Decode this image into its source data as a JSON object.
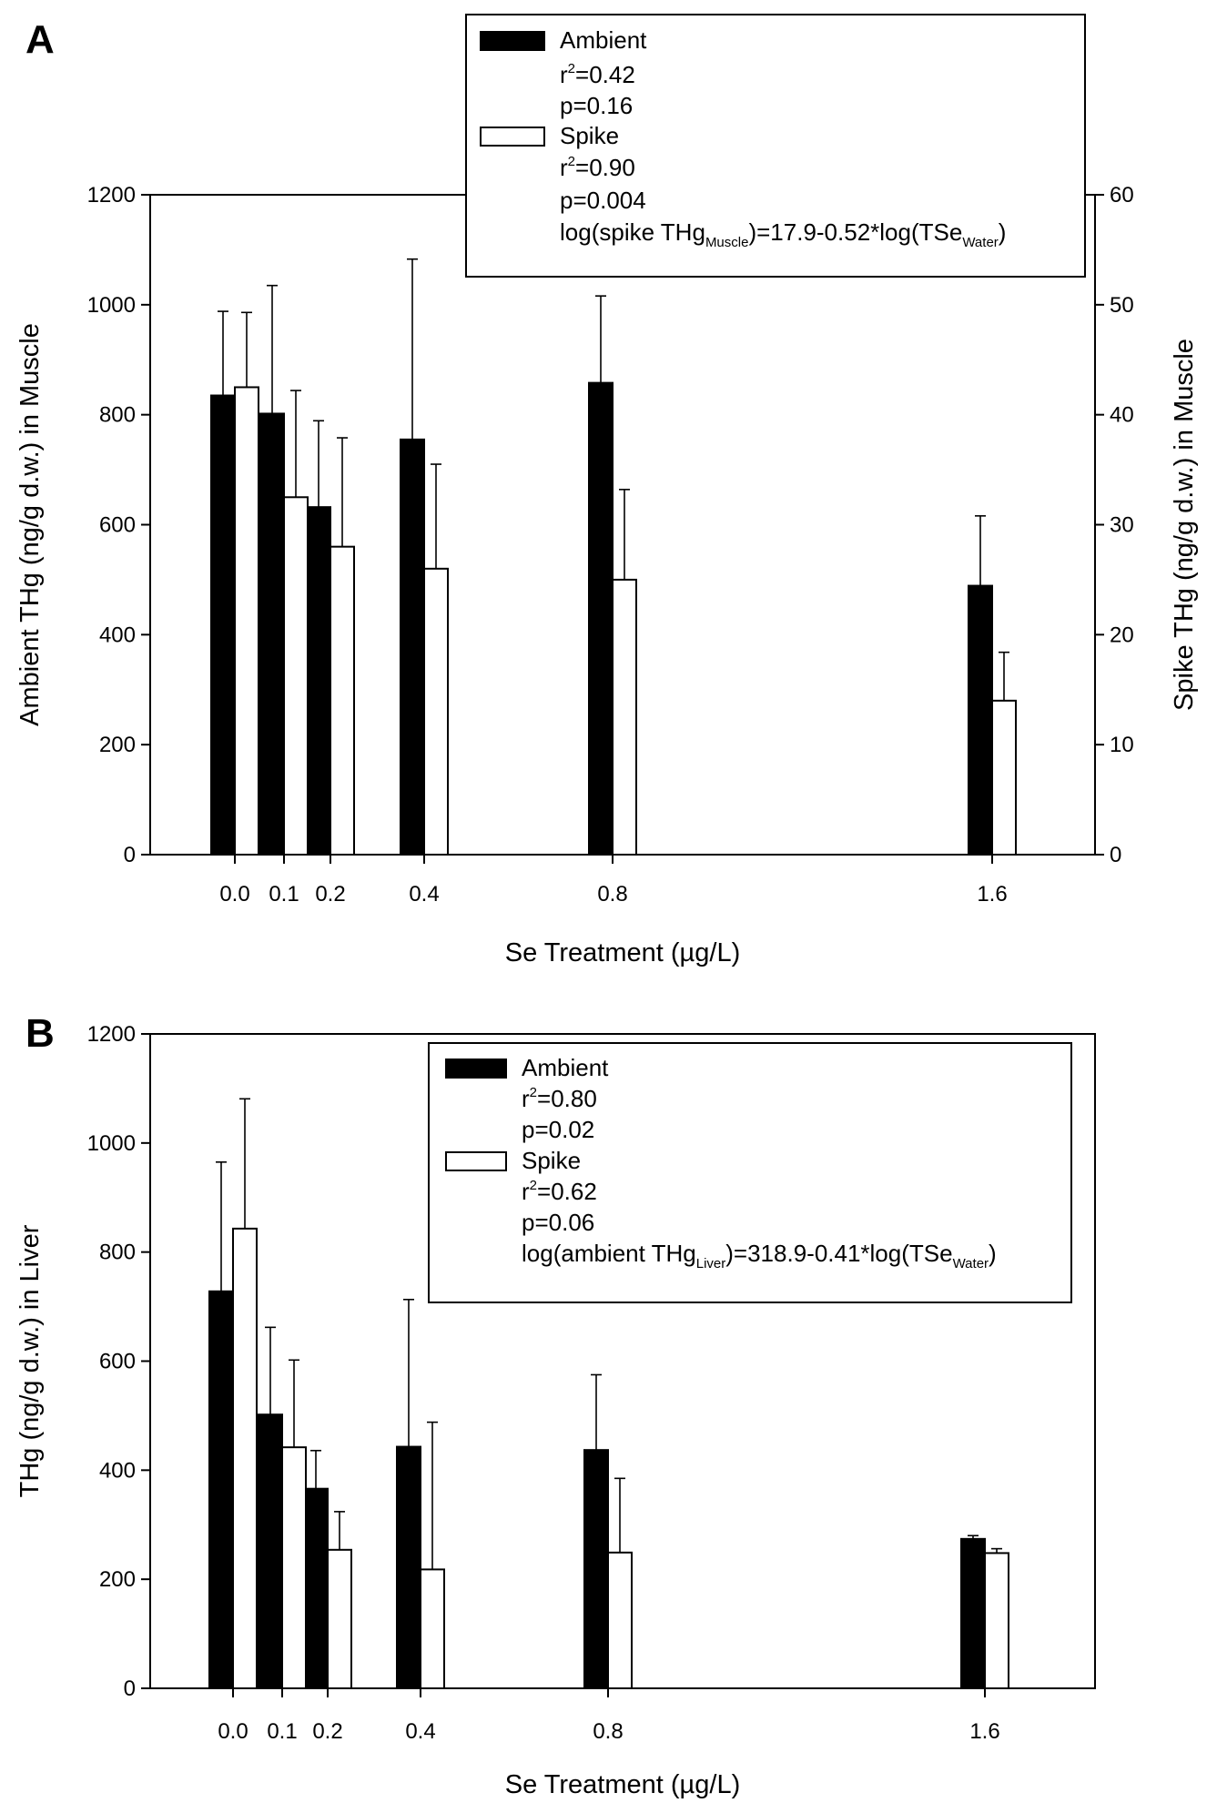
{
  "chart_data": [
    {
      "panel": "A",
      "type": "bar",
      "categories": [
        "0.0",
        "0.1",
        "0.2",
        "0.4",
        "0.8",
        "1.6"
      ],
      "x": [
        0.0,
        0.1,
        0.2,
        0.4,
        0.8,
        1.6
      ],
      "xlabel": "Se Treatment (µg/L)",
      "ylabel": "Ambient THg (ng/g d.w.) in Muscle",
      "y2label": "Spike THg (ng/g d.w.) in Muscle",
      "ylim": [
        0,
        1200
      ],
      "y2lim": [
        0,
        60
      ],
      "yticks": [
        0,
        200,
        400,
        600,
        800,
        1000,
        1200
      ],
      "y2ticks": [
        0,
        10,
        20,
        30,
        40,
        50,
        60
      ],
      "series": [
        {
          "name": "Ambient",
          "fill": "#000000",
          "axis": "left",
          "values": [
            835,
            802,
            632,
            755,
            858,
            489
          ],
          "errors": [
            153,
            233,
            157,
            328,
            158,
            127
          ]
        },
        {
          "name": "Spike",
          "fill": "#ffffff",
          "axis": "right",
          "values": [
            42.5,
            32.5,
            28,
            26,
            25,
            14
          ],
          "errors": [
            6.8,
            9.7,
            9.9,
            9.5,
            8.2,
            4.4
          ]
        }
      ],
      "legend": {
        "position": "top-right",
        "entries": [
          {
            "name": "Ambient",
            "r2_prefix": "r",
            "r2_sup": "2",
            "r2_value": "=0.42",
            "p": "p=0.16"
          },
          {
            "name": "Spike",
            "r2_prefix": "r",
            "r2_sup": "2",
            "r2_value": "=0.90",
            "p": "p=0.004"
          }
        ],
        "equation": {
          "part1": "log(spike THg",
          "sub1": "Muscle",
          "part2": ")=17.9-0.52*log(TSe",
          "sub2": "Water",
          "part3": ")"
        }
      }
    },
    {
      "panel": "B",
      "type": "bar",
      "categories": [
        "0.0",
        "0.1",
        "0.2",
        "0.4",
        "0.8",
        "1.6"
      ],
      "x": [
        0.0,
        0.1,
        0.2,
        0.4,
        0.8,
        1.6
      ],
      "xlabel": "Se Treatment (µg/L)",
      "ylabel": "THg (ng/g d.w.) in Liver",
      "ylim": [
        0,
        1200
      ],
      "yticks": [
        0,
        200,
        400,
        600,
        800,
        1000,
        1200
      ],
      "series": [
        {
          "name": "Ambient",
          "fill": "#000000",
          "axis": "left",
          "values": [
            728,
            502,
            366,
            443,
            437,
            274
          ],
          "errors": [
            237,
            160,
            70,
            270,
            138,
            6
          ]
        },
        {
          "name": "Spike",
          "fill": "#ffffff",
          "axis": "left",
          "values": [
            843,
            442,
            254,
            218,
            249,
            248
          ],
          "errors": [
            238,
            160,
            70,
            270,
            136,
            8
          ]
        }
      ],
      "legend": {
        "position": "top-right",
        "entries": [
          {
            "name": "Ambient",
            "r2_prefix": "r",
            "r2_sup": "2",
            "r2_value": "=0.80",
            "p": "p=0.02"
          },
          {
            "name": "Spike",
            "r2_prefix": "r",
            "r2_sup": "2",
            "r2_value": "=0.62",
            "p": "p=0.06"
          }
        ],
        "equation": {
          "part1": "log(ambient THg",
          "sub1": "Liver",
          "part2": ")=318.9-0.41*log(TSe",
          "sub2": "Water",
          "part3": ")"
        }
      }
    }
  ]
}
